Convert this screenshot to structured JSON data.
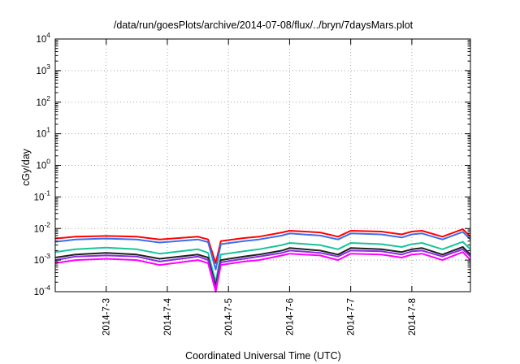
{
  "chart_data": {
    "type": "line",
    "title": "/data/run/goesPlots/archive/2014-07-08/flux/../bryn/7daysMars.plot",
    "xlabel": "Coordinated Universal Time (UTC)",
    "ylabel": "cGy/day",
    "yscale": "log",
    "ylim": [
      0.0001,
      10000
    ],
    "y_ticks": [
      {
        "base": "10",
        "exp": "-4"
      },
      {
        "base": "10",
        "exp": "-3"
      },
      {
        "base": "10",
        "exp": "-2"
      },
      {
        "base": "10",
        "exp": "-1"
      },
      {
        "base": "10",
        "exp": "0"
      },
      {
        "base": "10",
        "exp": "1"
      },
      {
        "base": "10",
        "exp": "2"
      },
      {
        "base": "10",
        "exp": "3"
      },
      {
        "base": "10",
        "exp": "4"
      }
    ],
    "xlim": [
      "2014-07-02 04:00",
      "2014-07-08 23:00"
    ],
    "x_ticks": [
      "2014-7-3",
      "2014-7-4",
      "2014-7-5",
      "2014-7-6",
      "2014-7-7",
      "2014-7-8"
    ],
    "grid": true,
    "colors": [
      "#ff0000",
      "#3a6df0",
      "#19c39a",
      "#1f1f1f",
      "#8a2be2",
      "#ff00ff"
    ],
    "series": [
      {
        "color": "#ff0000",
        "x": [
          "2014-07-02 04:00",
          "2014-07-02 12:00",
          "2014-07-03 00:00",
          "2014-07-03 12:00",
          "2014-07-03 21:00",
          "2014-07-04 12:00",
          "2014-07-04 16:00",
          "2014-07-04 19:00",
          "2014-07-04 21:00",
          "2014-07-05 06:00",
          "2014-07-05 12:00",
          "2014-07-05 21:00",
          "2014-07-06 00:00",
          "2014-07-06 12:00",
          "2014-07-06 19:00",
          "2014-07-07 00:00",
          "2014-07-07 12:00",
          "2014-07-07 20:00",
          "2014-07-08 00:00",
          "2014-07-08 04:00",
          "2014-07-08 12:00",
          "2014-07-08 20:00",
          "2014-07-08 23:00"
        ],
        "y": [
          0.0048,
          0.0055,
          0.0058,
          0.0055,
          0.0045,
          0.0055,
          0.0045,
          0.0008,
          0.004,
          0.005,
          0.0055,
          0.0075,
          0.0085,
          0.0075,
          0.0055,
          0.0085,
          0.008,
          0.0065,
          0.008,
          0.0085,
          0.0055,
          0.0095,
          0.0055
        ]
      },
      {
        "color": "#3a6df0",
        "x": [
          "2014-07-02 04:00",
          "2014-07-02 12:00",
          "2014-07-03 00:00",
          "2014-07-03 12:00",
          "2014-07-03 21:00",
          "2014-07-04 12:00",
          "2014-07-04 16:00",
          "2014-07-04 19:00",
          "2014-07-04 21:00",
          "2014-07-05 06:00",
          "2014-07-05 12:00",
          "2014-07-05 21:00",
          "2014-07-06 00:00",
          "2014-07-06 12:00",
          "2014-07-06 19:00",
          "2014-07-07 00:00",
          "2014-07-07 12:00",
          "2014-07-07 20:00",
          "2014-07-08 00:00",
          "2014-07-08 04:00",
          "2014-07-08 12:00",
          "2014-07-08 20:00",
          "2014-07-08 23:00"
        ],
        "y": [
          0.0038,
          0.0045,
          0.0048,
          0.0045,
          0.0036,
          0.0045,
          0.0037,
          0.0005,
          0.0032,
          0.004,
          0.0045,
          0.006,
          0.007,
          0.006,
          0.0045,
          0.007,
          0.0065,
          0.0052,
          0.0065,
          0.007,
          0.0045,
          0.0078,
          0.0045
        ]
      },
      {
        "color": "#19c39a",
        "x": [
          "2014-07-02 04:00",
          "2014-07-02 12:00",
          "2014-07-03 00:00",
          "2014-07-03 12:00",
          "2014-07-03 21:00",
          "2014-07-04 12:00",
          "2014-07-04 16:00",
          "2014-07-04 19:00",
          "2014-07-04 21:00",
          "2014-07-05 06:00",
          "2014-07-05 12:00",
          "2014-07-05 21:00",
          "2014-07-06 00:00",
          "2014-07-06 12:00",
          "2014-07-06 19:00",
          "2014-07-07 00:00",
          "2014-07-07 12:00",
          "2014-07-07 20:00",
          "2014-07-08 00:00",
          "2014-07-08 04:00",
          "2014-07-08 12:00",
          "2014-07-08 20:00",
          "2014-07-08 23:00"
        ],
        "y": [
          0.0018,
          0.0022,
          0.0025,
          0.0022,
          0.0016,
          0.0022,
          0.0017,
          0.0002,
          0.0015,
          0.0019,
          0.0022,
          0.003,
          0.0035,
          0.003,
          0.0022,
          0.0035,
          0.0032,
          0.0026,
          0.0032,
          0.0035,
          0.0022,
          0.0038,
          0.0022
        ]
      },
      {
        "color": "#1f1f1f",
        "x": [
          "2014-07-02 04:00",
          "2014-07-02 12:00",
          "2014-07-03 00:00",
          "2014-07-03 12:00",
          "2014-07-03 21:00",
          "2014-07-04 12:00",
          "2014-07-04 16:00",
          "2014-07-04 19:00",
          "2014-07-04 21:00",
          "2014-07-05 06:00",
          "2014-07-05 12:00",
          "2014-07-05 21:00",
          "2014-07-06 00:00",
          "2014-07-06 12:00",
          "2014-07-06 19:00",
          "2014-07-07 00:00",
          "2014-07-07 12:00",
          "2014-07-07 20:00",
          "2014-07-08 00:00",
          "2014-07-08 04:00",
          "2014-07-08 12:00",
          "2014-07-08 20:00",
          "2014-07-08 23:00"
        ],
        "y": [
          0.0012,
          0.0015,
          0.0017,
          0.0015,
          0.0011,
          0.0015,
          0.0012,
          0.00015,
          0.001,
          0.0013,
          0.0015,
          0.002,
          0.0024,
          0.002,
          0.0015,
          0.0024,
          0.0022,
          0.0018,
          0.0022,
          0.0024,
          0.0015,
          0.0026,
          0.0015
        ]
      },
      {
        "color": "#8a2be2",
        "x": [
          "2014-07-02 04:00",
          "2014-07-02 12:00",
          "2014-07-03 00:00",
          "2014-07-03 12:00",
          "2014-07-03 21:00",
          "2014-07-04 12:00",
          "2014-07-04 16:00",
          "2014-07-04 19:00",
          "2014-07-04 21:00",
          "2014-07-05 06:00",
          "2014-07-05 12:00",
          "2014-07-05 21:00",
          "2014-07-06 00:00",
          "2014-07-06 12:00",
          "2014-07-06 19:00",
          "2014-07-07 00:00",
          "2014-07-07 12:00",
          "2014-07-07 20:00",
          "2014-07-08 00:00",
          "2014-07-08 04:00",
          "2014-07-08 12:00",
          "2014-07-08 20:00",
          "2014-07-08 23:00"
        ],
        "y": [
          0.001,
          0.0013,
          0.0014,
          0.0013,
          0.0009,
          0.0013,
          0.001,
          0.00012,
          0.00085,
          0.0011,
          0.0013,
          0.0017,
          0.002,
          0.0017,
          0.0013,
          0.002,
          0.0019,
          0.0015,
          0.0019,
          0.002,
          0.0013,
          0.0022,
          0.0013
        ]
      },
      {
        "color": "#ff00ff",
        "x": [
          "2014-07-02 04:00",
          "2014-07-02 12:00",
          "2014-07-03 00:00",
          "2014-07-03 12:00",
          "2014-07-03 21:00",
          "2014-07-04 12:00",
          "2014-07-04 16:00",
          "2014-07-04 19:00",
          "2014-07-04 21:00",
          "2014-07-05 06:00",
          "2014-07-05 12:00",
          "2014-07-05 21:00",
          "2014-07-06 00:00",
          "2014-07-06 12:00",
          "2014-07-06 19:00",
          "2014-07-07 00:00",
          "2014-07-07 12:00",
          "2014-07-07 20:00",
          "2014-07-08 00:00",
          "2014-07-08 04:00",
          "2014-07-08 12:00",
          "2014-07-08 20:00",
          "2014-07-08 23:00"
        ],
        "y": [
          0.0008,
          0.001,
          0.0011,
          0.001,
          0.0007,
          0.001,
          0.0008,
          0.0001,
          0.0007,
          0.0009,
          0.001,
          0.0014,
          0.0016,
          0.0014,
          0.001,
          0.0016,
          0.0015,
          0.0012,
          0.0015,
          0.0016,
          0.001,
          0.0018,
          0.001
        ]
      }
    ]
  }
}
